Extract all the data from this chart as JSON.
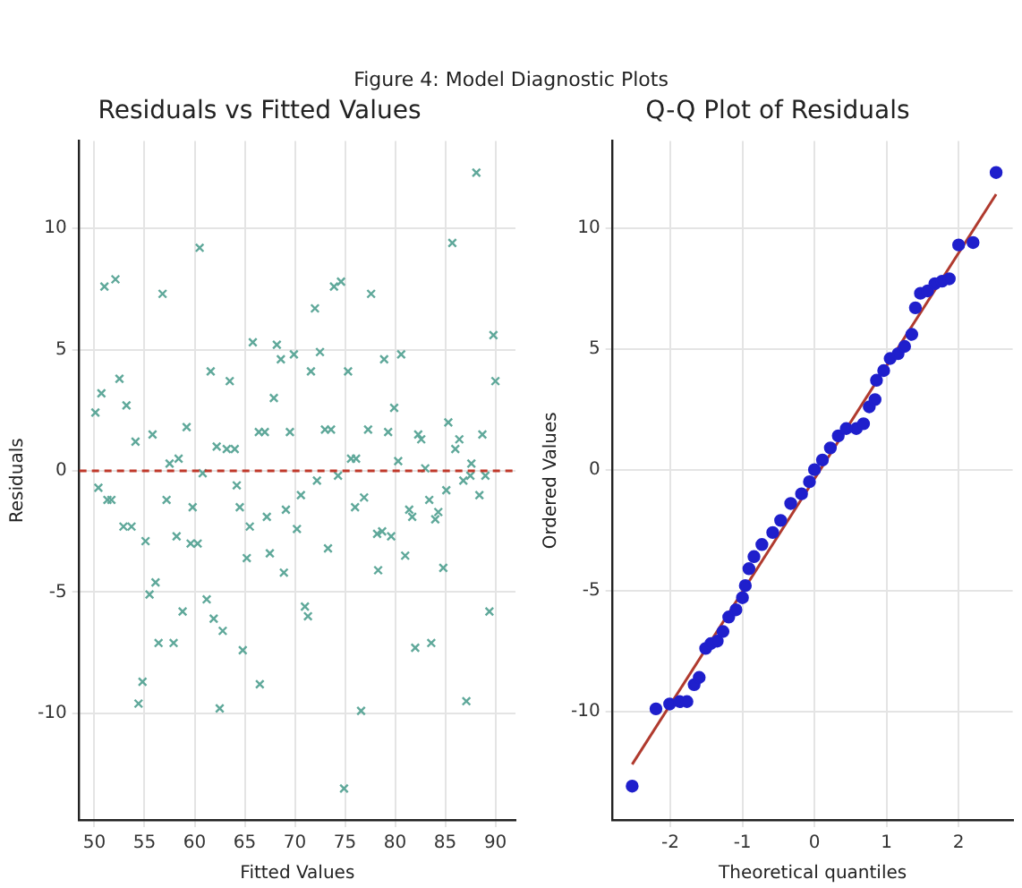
{
  "chart_data": [
    {
      "type": "scatter",
      "title": "Residuals vs Fitted Values",
      "xlabel": "Fitted Values",
      "ylabel": "Residuals",
      "annotations": [
        "Figure 4: Model Diagnostic Plots"
      ],
      "marker": "cross",
      "grid": true,
      "xlim": [
        48.5,
        92
      ],
      "ylim": [
        -14.4,
        13.6
      ],
      "xticks": [
        50,
        55,
        60,
        65,
        70,
        75,
        80,
        85,
        90
      ],
      "yticks": [
        -10,
        -5,
        0,
        5,
        10
      ],
      "ref_lines": [
        {
          "axis": "y",
          "value": 0,
          "color": "#c0392b",
          "line_style": "dashed"
        }
      ],
      "series": [
        {
          "color": "#5fa89a",
          "x": [
            50.1,
            50.7,
            51.0,
            52.1,
            52.5,
            53.2,
            54.1,
            55.8,
            56.8,
            57.5,
            58.4,
            59.2,
            60.5,
            61.6,
            62.2,
            63.2,
            64.0,
            63.5,
            65.8,
            66.4,
            67.0,
            67.9,
            68.2,
            68.6,
            69.5,
            69.9,
            71.6,
            72.0,
            72.5,
            73.0,
            73.6,
            73.9,
            74.6,
            75.3,
            75.6,
            76.1,
            77.3,
            77.6,
            78.9,
            79.3,
            79.9,
            80.3,
            80.6,
            82.3,
            82.6,
            83.0,
            85.3,
            85.7,
            86.0,
            86.4,
            87.6,
            88.1,
            88.7,
            89.8,
            90.0,
            50.4,
            51.3,
            51.7,
            52.9,
            53.7,
            55.1,
            55.5,
            56.1,
            56.4,
            57.2,
            58.2,
            58.8,
            57.9,
            59.8,
            59.6,
            60.3,
            60.8,
            54.8,
            54.4,
            61.2,
            61.9,
            62.8,
            62.5,
            64.2,
            64.5,
            65.5,
            65.2,
            64.8,
            66.5,
            67.2,
            67.5,
            68.9,
            69.1,
            70.2,
            70.6,
            71.0,
            71.3,
            72.2,
            73.3,
            74.3,
            74.9,
            76.0,
            76.9,
            76.6,
            78.2,
            78.7,
            78.3,
            79.6,
            81.0,
            81.4,
            81.7,
            82.0,
            83.4,
            83.6,
            84.0,
            84.3,
            84.8,
            85.1,
            86.8,
            87.1,
            87.5,
            88.4,
            89.0,
            89.4
          ],
          "values": [
            2.4,
            3.2,
            7.6,
            7.9,
            3.8,
            2.7,
            1.2,
            1.5,
            7.3,
            0.3,
            0.5,
            1.8,
            9.2,
            4.1,
            1.0,
            0.9,
            0.9,
            3.7,
            5.3,
            1.6,
            1.6,
            3.0,
            5.2,
            4.6,
            1.6,
            4.8,
            4.1,
            6.7,
            4.9,
            1.7,
            1.7,
            7.6,
            7.8,
            4.1,
            0.5,
            0.5,
            1.7,
            7.3,
            4.6,
            1.6,
            2.6,
            0.4,
            4.8,
            1.5,
            1.3,
            0.1,
            2.0,
            9.4,
            0.9,
            1.3,
            0.3,
            12.3,
            1.5,
            5.6,
            3.7,
            -0.7,
            -1.2,
            -1.2,
            -2.3,
            -2.3,
            -2.9,
            -5.1,
            -4.6,
            -7.1,
            -1.2,
            -2.7,
            -5.8,
            -7.1,
            -1.5,
            -3.0,
            -3.0,
            -0.1,
            -8.7,
            -9.6,
            -5.3,
            -6.1,
            -6.6,
            -9.8,
            -0.6,
            -1.5,
            -2.3,
            -3.6,
            -7.4,
            -8.8,
            -1.9,
            -3.4,
            -4.2,
            -1.6,
            -2.4,
            -1.0,
            -5.6,
            -6.0,
            -0.4,
            -3.2,
            -0.2,
            -13.1,
            -1.5,
            -1.1,
            -9.9,
            -2.6,
            -2.5,
            -4.1,
            -2.7,
            -3.5,
            -1.6,
            -1.9,
            -7.3,
            -1.2,
            -7.1,
            -2.0,
            -1.7,
            -4.0,
            -0.8,
            -0.4,
            -9.5,
            -0.2,
            -1.0,
            -0.2,
            -5.8
          ]
        }
      ]
    },
    {
      "type": "scatter",
      "title": "Q-Q Plot of Residuals",
      "xlabel": "Theoretical quantiles",
      "ylabel": "Ordered Values",
      "grid": true,
      "xlim": [
        -2.8,
        2.75
      ],
      "ylim": [
        -14.5,
        13.6
      ],
      "xticks": [
        -2,
        -1,
        0,
        1,
        2
      ],
      "yticks": [
        -10,
        -5,
        0,
        5,
        10
      ],
      "series": [
        {
          "type": "scatter",
          "marker": "circle",
          "color": "#1f1fcc",
          "x": [
            -2.53,
            -2.2,
            -2.01,
            -1.87,
            -1.77,
            -1.67,
            -1.6,
            -1.51,
            -1.44,
            -1.35,
            -1.27,
            -1.19,
            -1.09,
            -1.0,
            -0.96,
            -0.91,
            -0.84,
            -0.73,
            -0.58,
            -0.47,
            -0.33,
            -0.18,
            -0.07,
            0,
            0.11,
            0.22,
            0.33,
            0.44,
            0.58,
            0.68,
            0.76,
            0.84,
            0.86,
            0.96,
            1.05,
            1.16,
            1.25,
            1.35,
            1.4,
            1.47,
            1.57,
            1.67,
            1.77,
            1.87,
            2.0,
            2.2,
            2.52
          ],
          "values": [
            -13.1,
            -9.9,
            -9.7,
            -9.6,
            -9.6,
            -8.9,
            -8.6,
            -7.4,
            -7.2,
            -7.1,
            -6.7,
            -6.1,
            -5.8,
            -5.3,
            -4.8,
            -4.1,
            -3.6,
            -3.1,
            -2.6,
            -2.1,
            -1.4,
            -1.0,
            -0.5,
            0,
            0.4,
            0.9,
            1.4,
            1.7,
            1.7,
            1.9,
            2.6,
            2.9,
            3.7,
            4.1,
            4.6,
            4.8,
            5.1,
            5.6,
            6.7,
            7.3,
            7.4,
            7.7,
            7.8,
            7.9,
            9.3,
            9.4,
            12.3
          ]
        },
        {
          "type": "line",
          "marker": "none",
          "color": "#b03a2e",
          "x": [
            -2.53,
            2.52
          ],
          "values": [
            -12.2,
            11.4
          ]
        }
      ]
    }
  ]
}
